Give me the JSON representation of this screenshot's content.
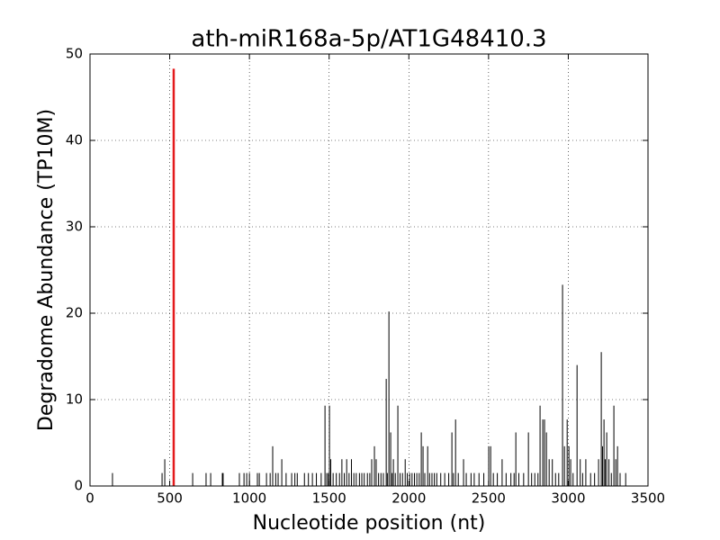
{
  "chart_data": {
    "type": "stem",
    "title": "ath-miR168a-5p/AT1G48410.3",
    "xlabel": "Nucleotide position (nt)",
    "ylabel": "Degradome Abundance (TP10M)",
    "xlim": [
      0,
      3500
    ],
    "xticks": [
      0,
      500,
      1000,
      1500,
      2000,
      2500,
      3000,
      3500
    ],
    "ylim": [
      0,
      50
    ],
    "yticks": [
      0,
      10,
      20,
      30,
      40,
      50
    ],
    "grid": true,
    "series": [
      {
        "color": "#000000",
        "x": [
          141,
          452,
          469,
          644,
          728,
          757,
          830,
          835,
          937,
          966,
          983,
          1000,
          1050,
          1062,
          1107,
          1130,
          1146,
          1165,
          1180,
          1203,
          1230,
          1265,
          1285,
          1300,
          1345,
          1370,
          1395,
          1420,
          1450,
          1474,
          1485,
          1495,
          1502,
          1510,
          1525,
          1545,
          1565,
          1580,
          1595,
          1610,
          1625,
          1640,
          1655,
          1670,
          1690,
          1705,
          1720,
          1740,
          1755,
          1767,
          1784,
          1795,
          1810,
          1825,
          1840,
          1858,
          1865,
          1875,
          1886,
          1895,
          1903,
          1915,
          1931,
          1945,
          1960,
          1977,
          1990,
          2005,
          2020,
          2035,
          2050,
          2065,
          2078,
          2089,
          2100,
          2118,
          2130,
          2145,
          2160,
          2175,
          2200,
          2225,
          2250,
          2270,
          2280,
          2293,
          2310,
          2343,
          2360,
          2390,
          2410,
          2440,
          2470,
          2501,
          2513,
          2530,
          2555,
          2585,
          2610,
          2640,
          2660,
          2671,
          2690,
          2720,
          2750,
          2770,
          2790,
          2810,
          2823,
          2840,
          2851,
          2863,
          2880,
          2900,
          2920,
          2940,
          2964,
          2976,
          2993,
          3004,
          3015,
          3030,
          3055,
          3075,
          3090,
          3110,
          3140,
          3165,
          3190,
          3207,
          3215,
          3224,
          3232,
          3241,
          3255,
          3270,
          3286,
          3298,
          3309,
          3325,
          3360
        ],
        "values": [
          1.5,
          1.5,
          3.1,
          1.5,
          1.5,
          1.5,
          1.5,
          1.5,
          1.5,
          1.5,
          1.5,
          1.5,
          1.5,
          1.5,
          1.5,
          1.5,
          4.6,
          1.5,
          1.5,
          3.1,
          1.5,
          1.5,
          1.5,
          1.5,
          1.5,
          1.5,
          1.5,
          1.5,
          1.5,
          9.3,
          1.5,
          1.5,
          9.3,
          3.1,
          1.5,
          1.5,
          1.5,
          3.1,
          1.5,
          3.1,
          1.5,
          3.1,
          1.5,
          1.5,
          1.5,
          1.5,
          1.5,
          1.5,
          1.5,
          3.1,
          4.6,
          3.1,
          1.5,
          1.5,
          1.5,
          12.4,
          1.5,
          20.2,
          6.2,
          1.5,
          3.1,
          1.5,
          9.3,
          1.5,
          1.5,
          3.1,
          1.5,
          1.5,
          1.5,
          1.5,
          1.5,
          1.5,
          6.2,
          4.6,
          1.5,
          4.6,
          1.5,
          1.5,
          1.5,
          1.5,
          1.5,
          1.5,
          1.5,
          6.2,
          1.5,
          7.7,
          1.5,
          3.1,
          1.5,
          1.5,
          1.5,
          1.5,
          1.5,
          4.6,
          4.6,
          1.5,
          1.5,
          3.1,
          1.5,
          1.5,
          1.5,
          6.2,
          1.5,
          1.5,
          6.2,
          1.5,
          1.5,
          1.5,
          9.3,
          7.7,
          7.7,
          6.2,
          3.1,
          3.1,
          1.5,
          1.5,
          23.3,
          4.6,
          7.7,
          4.6,
          3.1,
          1.5,
          14,
          3.1,
          1.5,
          3.1,
          1.5,
          1.5,
          3.1,
          15.5,
          4.6,
          7.7,
          3.1,
          6.2,
          3.1,
          1.5,
          9.3,
          3.1,
          4.6,
          1.5,
          1.5
        ]
      },
      {
        "color": "#e31a1c",
        "x": [
          525
        ],
        "values": [
          48.3
        ]
      }
    ]
  }
}
